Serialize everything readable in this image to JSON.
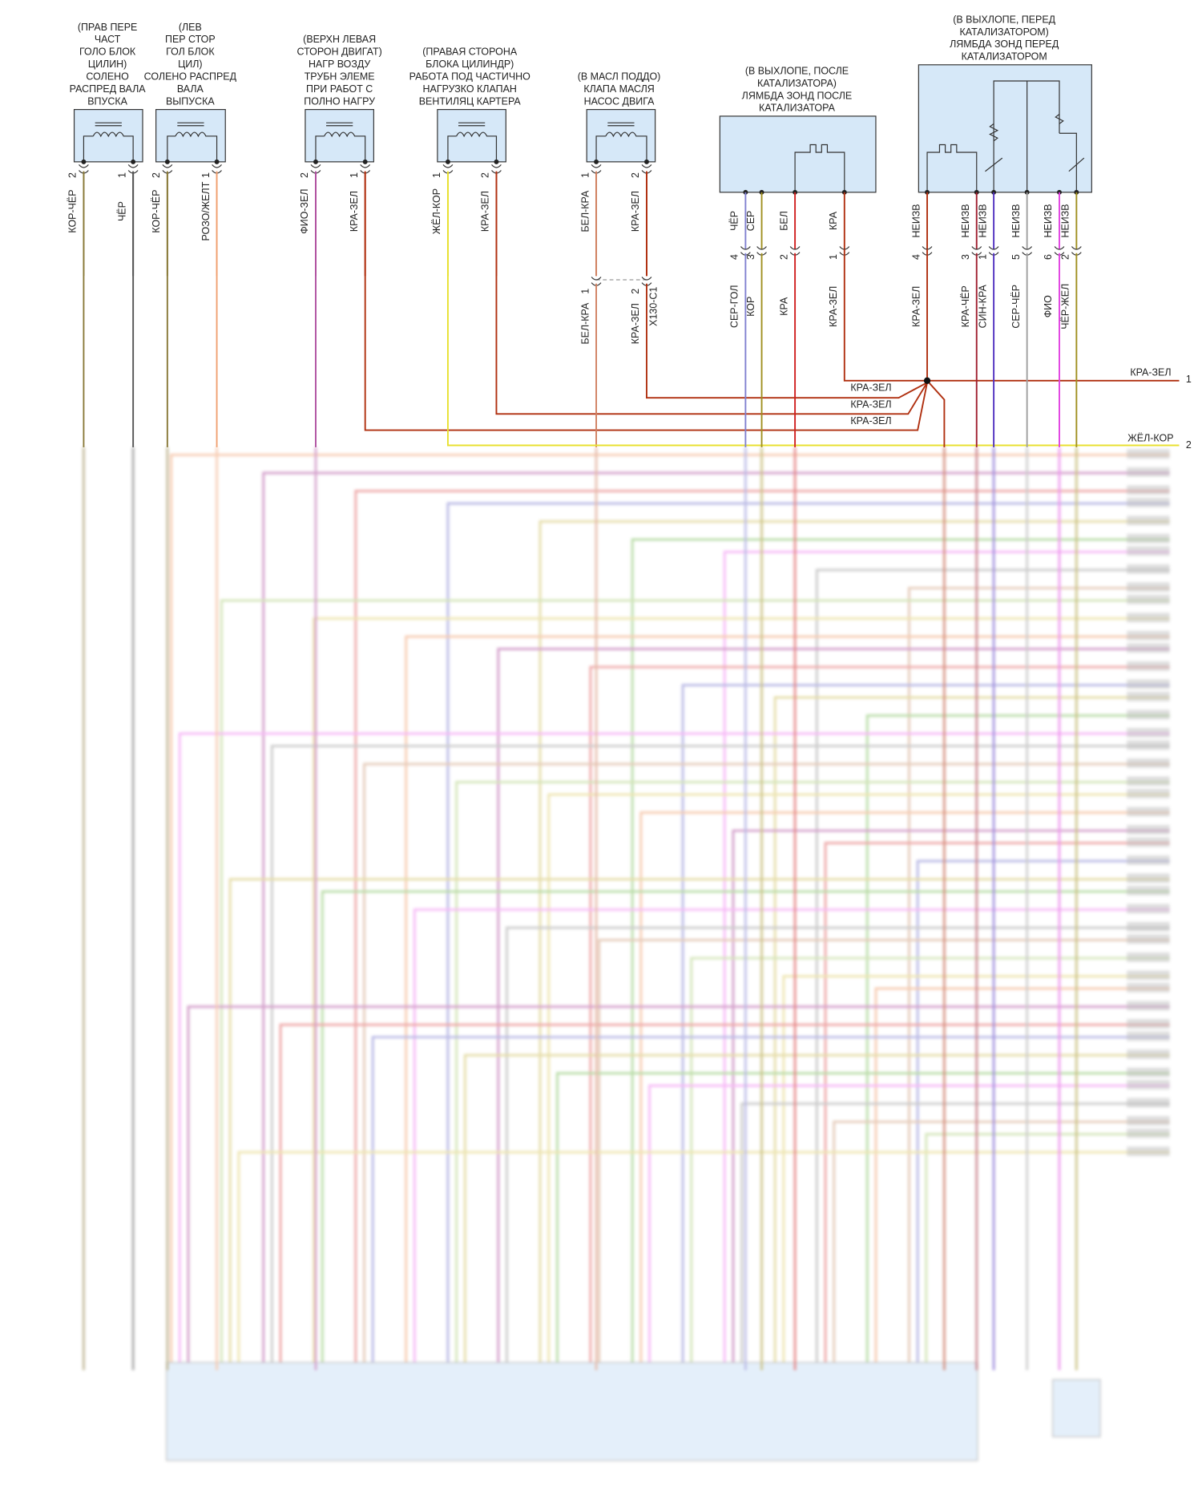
{
  "components": [
    {
      "label": [
        "(ПРАВ ПЕРЕ",
        "ЧАСТ",
        "ГОЛО БЛОК",
        "ЦИЛИН)",
        "СОЛЕНО",
        "РАСПРЕД ВАЛА",
        "ВПУСКА"
      ],
      "pins": [
        {
          "number": 2,
          "wire": "КОР-ЧЁР"
        },
        {
          "number": 1,
          "wire": "ЧЁР"
        }
      ]
    },
    {
      "label": [
        "(ЛЕВ",
        "ПЕР СТОР",
        "ГОЛ БЛОК",
        "ЦИЛ)",
        "СОЛЕНО РАСПРЕД",
        "ВАЛА",
        "ВЫПУСКА"
      ],
      "pins": [
        {
          "number": 2,
          "wire": "КОР-ЧЁР"
        },
        {
          "number": 1,
          "wire": "РОЗО/ЖЕЛТ"
        }
      ]
    },
    {
      "label": [
        "(ВЕРХН ЛЕВАЯ",
        "СТОРОН ДВИГАТ)",
        "НАГР ВОЗДУ",
        "ТРУБН ЭЛЕМЕ",
        "ПРИ РАБОТ С",
        "ПОЛНО НАГРУ"
      ],
      "pins": [
        {
          "number": 2,
          "wire": "ФИО-ЗЕЛ"
        },
        {
          "number": 1,
          "wire": "КРА-ЗЕЛ"
        }
      ]
    },
    {
      "label": [
        "(ПРАВАЯ СТОРОНА",
        "БЛОКА ЦИЛИНДР)",
        "РАБОТА ПОД ЧАСТИЧНО",
        "НАГРУЗКО КЛАПАН",
        "ВЕНТИЛЯЦ КАРТЕРА"
      ],
      "pins": [
        {
          "number": 1,
          "wire": "ЖЁЛ-КОР"
        },
        {
          "number": 2,
          "wire": "КРА-ЗЕЛ"
        }
      ]
    },
    {
      "label": [
        "(В МАСЛ ПОДДО)",
        "КЛАПА МАСЛЯ",
        "НАСОС ДВИГА"
      ],
      "pins": [
        {
          "number": 1,
          "wire": "БЕЛ-КРА"
        },
        {
          "number": 2,
          "wire": "КРА-ЗЕЛ"
        }
      ]
    },
    {
      "label": [
        "(В ВЫХЛОПЕ, ПОСЛЕ",
        "КАТАЛИЗАТОРА)",
        "ЛЯМБДА ЗОНД ПОСЛЕ",
        "КАТАЛИЗАТОРА"
      ],
      "pins": [
        {
          "terminal": "ЧЁР",
          "number": 4,
          "wire": "СЕР-ГОЛ"
        },
        {
          "terminal": "СЕР",
          "number": 3,
          "wire": "КОР"
        },
        {
          "terminal": "БЕЛ",
          "number": 2,
          "wire": "КРА"
        },
        {
          "terminal": "КРА",
          "number": 1,
          "wire": "КРА-ЗЕЛ"
        }
      ]
    },
    {
      "label": [
        "(В ВЫХЛОПЕ, ПЕРЕД",
        "КАТАЛИЗАТОРОМ)",
        "ЛЯМБДА ЗОНД ПЕРЕД",
        "КАТАЛИЗАТОРОМ"
      ],
      "pins": [
        {
          "terminal": "НЕИЗВ",
          "number": 4,
          "wire": "КРА-ЗЕЛ"
        },
        {
          "terminal": "НЕИЗВ",
          "number": 3,
          "wire": "КРА-ЧЁР"
        },
        {
          "terminal": "НЕИЗВ",
          "number": 1,
          "wire": "СИН-КРА"
        },
        {
          "terminal": "НЕИЗВ",
          "number": 5,
          "wire": "СЕР-ЧЁР"
        },
        {
          "terminal": "НЕИЗВ",
          "number": 6,
          "wire": "ФИО"
        },
        {
          "terminal": "НЕИЗВ",
          "number": 2,
          "wire": "ЧЁР-ЖЕЛ"
        }
      ]
    }
  ],
  "inline_connector": {
    "label": "X130-C1",
    "pins": [
      {
        "number": 1,
        "wire": "БЕЛ-КРА"
      },
      {
        "number": 2,
        "wire": "КРА-ЗЕЛ"
      }
    ]
  },
  "splice_wires": [
    "КРА-ЗЕЛ",
    "КРА-ЗЕЛ",
    "КРА-ЗЕЛ"
  ],
  "outputs": [
    {
      "wire": "КРА-ЗЕЛ",
      "number": 1
    },
    {
      "wire": "ЖЁЛ-КОР",
      "number": 2
    }
  ]
}
